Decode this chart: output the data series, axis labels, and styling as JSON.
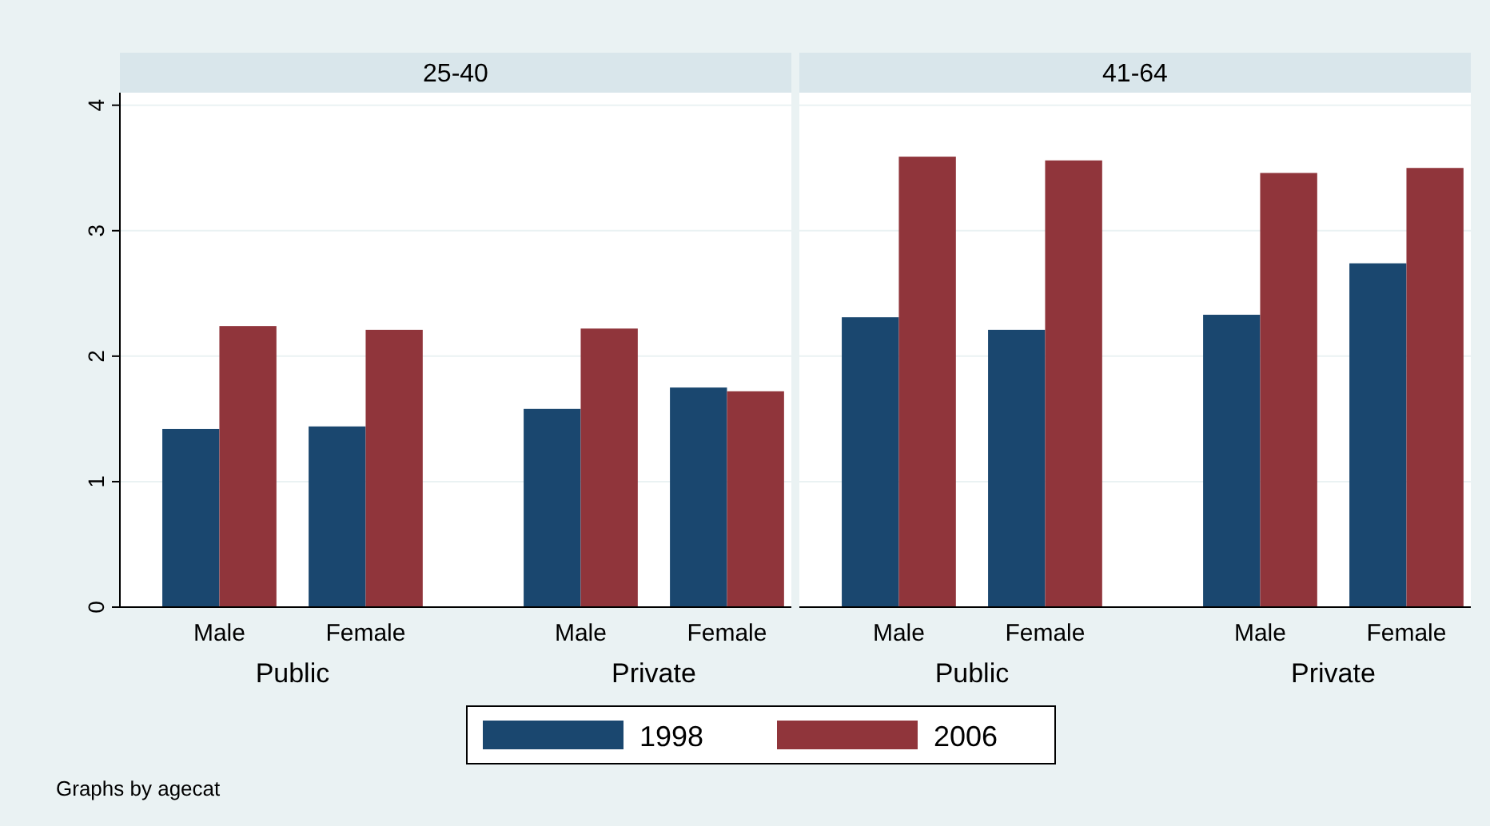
{
  "chart_data": [
    {
      "type": "bar",
      "title": "25-40",
      "categories": [
        "Male",
        "Female",
        "Male",
        "Female"
      ],
      "series": [
        {
          "name": "1998",
          "color": "#1a476f",
          "values": [
            1.42,
            1.44,
            1.58,
            1.75
          ]
        },
        {
          "name": "2006",
          "color": "#90353b",
          "values": [
            2.24,
            2.21,
            2.22,
            1.72
          ]
        }
      ],
      "ylim": [
        0,
        4.1
      ],
      "yticks": [
        0,
        1,
        2,
        3,
        4
      ],
      "grid": "y",
      "legend": "bottom",
      "annotations": [
        "Public",
        "Private"
      ]
    },
    {
      "type": "bar",
      "title": "41-64",
      "categories": [
        "Male",
        "Female",
        "Male",
        "Female"
      ],
      "series": [
        {
          "color": "#1a476f",
          "values": [
            2.31,
            2.21,
            2.33,
            2.74
          ]
        },
        {
          "color": "#90353b",
          "values": [
            3.59,
            3.56,
            3.46,
            3.5
          ]
        }
      ],
      "ylim": [
        0,
        4.1
      ],
      "yticks": [
        0,
        1,
        2,
        3,
        4
      ],
      "grid": "y",
      "tick_labels": "x",
      "annotations": [
        "Public",
        "Private",
        "Graphs by agecat"
      ]
    }
  ]
}
